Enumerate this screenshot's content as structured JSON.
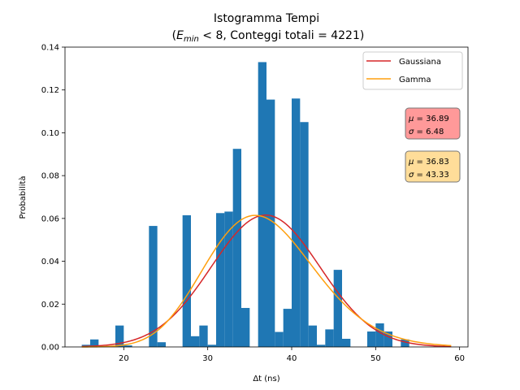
{
  "chart_data": {
    "type": "bar",
    "title_line1": "Istogramma Tempi",
    "title_line2_open": "(",
    "title_line2_var": "E",
    "title_line2_sub": "min",
    "title_line2_rest": " < 8, Conteggi totali = 4221)",
    "xlabel": "Δt (ns)",
    "ylabel": "Probabilità",
    "xlim": [
      13,
      61
    ],
    "ylim": [
      0,
      0.14
    ],
    "xticks": [
      20,
      30,
      40,
      50,
      60
    ],
    "yticks": [
      0.0,
      0.02,
      0.04,
      0.06,
      0.08,
      0.1,
      0.12,
      0.14
    ],
    "ytick_labels": [
      "0.00",
      "0.02",
      "0.04",
      "0.06",
      "0.08",
      "0.10",
      "0.12",
      "0.14"
    ],
    "bar_color": "#1f77b4",
    "bin_width": 1.0,
    "bins": [
      {
        "x": 15.5,
        "value": 0.001
      },
      {
        "x": 16.5,
        "value": 0.0035
      },
      {
        "x": 19.5,
        "value": 0.01
      },
      {
        "x": 20.5,
        "value": 0.0007
      },
      {
        "x": 23.5,
        "value": 0.0565
      },
      {
        "x": 24.5,
        "value": 0.0022
      },
      {
        "x": 27.5,
        "value": 0.0615
      },
      {
        "x": 28.5,
        "value": 0.005
      },
      {
        "x": 29.5,
        "value": 0.01
      },
      {
        "x": 30.5,
        "value": 0.001
      },
      {
        "x": 31.5,
        "value": 0.0625
      },
      {
        "x": 32.5,
        "value": 0.0632
      },
      {
        "x": 33.5,
        "value": 0.0925
      },
      {
        "x": 34.5,
        "value": 0.0182
      },
      {
        "x": 36.5,
        "value": 0.133
      },
      {
        "x": 37.5,
        "value": 0.1155
      },
      {
        "x": 38.5,
        "value": 0.007
      },
      {
        "x": 39.5,
        "value": 0.0178
      },
      {
        "x": 40.5,
        "value": 0.116
      },
      {
        "x": 41.5,
        "value": 0.105
      },
      {
        "x": 42.5,
        "value": 0.01
      },
      {
        "x": 43.5,
        "value": 0.001
      },
      {
        "x": 44.5,
        "value": 0.0082
      },
      {
        "x": 45.5,
        "value": 0.036
      },
      {
        "x": 46.5,
        "value": 0.0038
      },
      {
        "x": 49.5,
        "value": 0.0072
      },
      {
        "x": 50.5,
        "value": 0.011
      },
      {
        "x": 51.5,
        "value": 0.0072
      },
      {
        "x": 53.5,
        "value": 0.0035
      }
    ],
    "series": [
      {
        "name": "Gaussiana",
        "color": "#d62728",
        "kind": "gaussian",
        "mu": 36.89,
        "sigma": 6.48,
        "x_range": [
          15,
          59
        ]
      },
      {
        "name": "Gamma",
        "color": "#ff9f0e",
        "kind": "gamma",
        "mu": 36.83,
        "sigma2": 43.33,
        "x_range": [
          15,
          59
        ]
      }
    ],
    "legend_position": "top-right",
    "annotations": [
      {
        "line1_sym": "μ",
        "line1_val": " = 36.89",
        "line2_sym": "σ",
        "line2_val": " = 6.48",
        "face": "#ff9999"
      },
      {
        "line1_sym": "μ",
        "line1_val": " = 36.83",
        "line2_sym": "σ",
        "line2_val": " = 43.33",
        "face": "#ffdd99"
      }
    ]
  }
}
